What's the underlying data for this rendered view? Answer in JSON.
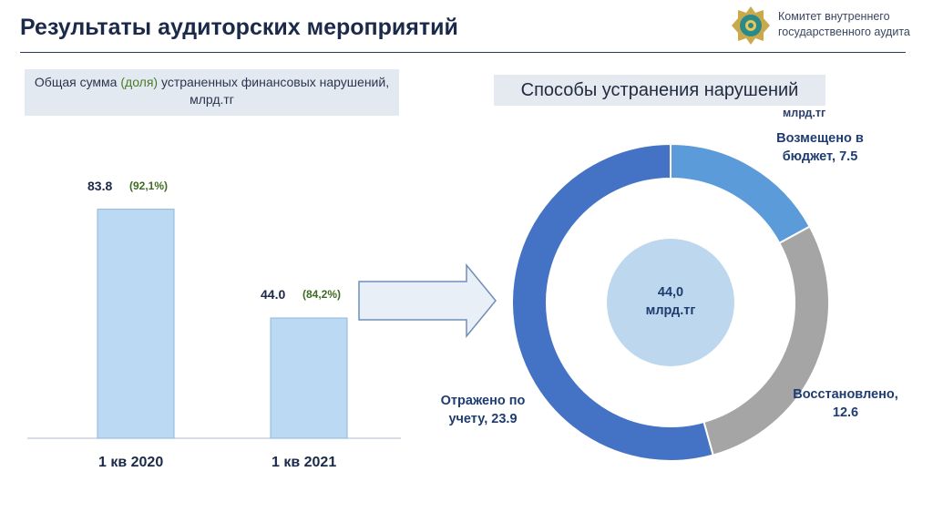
{
  "header": {
    "title": "Результаты аудиторских мероприятий",
    "org_name": "Комитет внутреннего государственного аудита"
  },
  "left_panel": {
    "caption_part1": "Общая сумма ",
    "caption_highlight": "(доля)",
    "caption_part2": " устраненных финансовых нарушений, млрд.тг"
  },
  "right_panel": {
    "caption": "Способы устранения нарушений",
    "unit": "млрд.тг",
    "center_value": "44,0",
    "center_unit": "млрд.тг"
  },
  "colors": {
    "bar_fill": "#bcd9f3",
    "bar_edge": "#8fb7dc",
    "slice_budget": "#5b9bd9",
    "slice_restored": "#a5a5a5",
    "slice_reflected": "#4472c4",
    "center_circle": "#bdd7ee",
    "arrow_fill": "#e9eff6",
    "arrow_stroke": "#6f8fb8"
  },
  "chart_data": [
    {
      "type": "bar",
      "categories": [
        "1 кв 2020",
        "1 кв 2021"
      ],
      "values": [
        83.8,
        44.0
      ],
      "value_labels": [
        "83.8",
        "44.0"
      ],
      "share_labels": [
        "(92,1%)",
        "(84,2%)"
      ],
      "title": "Общая сумма (доля) устраненных финансовых нарушений, млрд.тг",
      "ylim": [
        0,
        100
      ]
    },
    {
      "type": "pie",
      "title": "Способы устранения нарушений",
      "categories": [
        "Возмещено в бюджет",
        "Восстановлено",
        "Отражено по учету"
      ],
      "values": [
        7.5,
        12.6,
        23.9
      ],
      "labels": [
        "Возмещено в бюджет, 7.5",
        "Восстановлено, 12.6",
        "Отражено по учету, 23.9"
      ],
      "total_label": "44,0 млрд.тг"
    }
  ]
}
